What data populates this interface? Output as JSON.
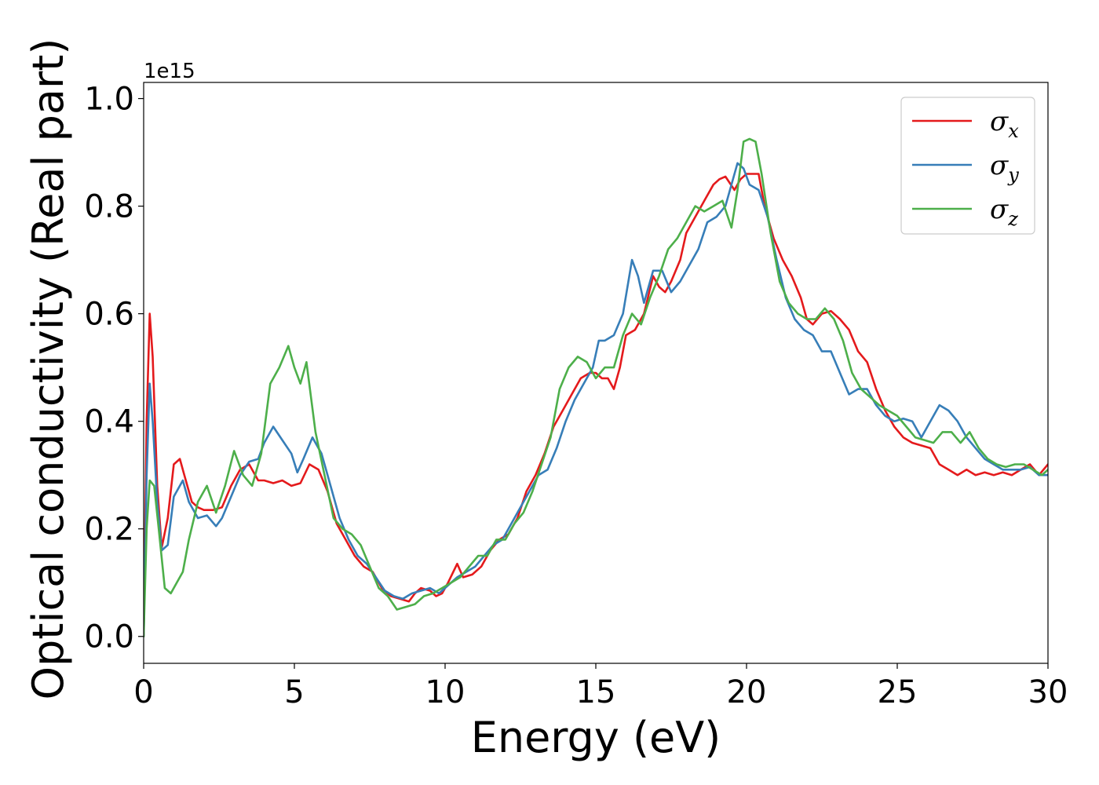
{
  "chart_data": {
    "type": "line",
    "title": "",
    "xlabel": "Energy (eV)",
    "ylabel": "Optical conductivity (Real part)",
    "y_multiplier_label": "1e15",
    "xlim": [
      0,
      30
    ],
    "ylim": [
      -0.05,
      1.03
    ],
    "x_ticks": [
      0,
      5,
      10,
      15,
      20,
      25,
      30
    ],
    "x_tick_labels": [
      "0",
      "5",
      "10",
      "15",
      "20",
      "25",
      "30"
    ],
    "y_ticks": [
      0.0,
      0.2,
      0.4,
      0.6,
      0.8,
      1.0
    ],
    "y_tick_labels": [
      "0.0",
      "0.2",
      "0.4",
      "0.6",
      "0.8",
      "1.0"
    ],
    "grid": false,
    "legend_position": "top-right",
    "series": [
      {
        "name": "σx",
        "symbol": "σ",
        "subscript": "x",
        "color": "#e41a1c",
        "x": [
          0,
          0.1,
          0.2,
          0.3,
          0.45,
          0.6,
          0.8,
          1.0,
          1.2,
          1.35,
          1.6,
          1.8,
          2.0,
          2.3,
          2.6,
          2.9,
          3.2,
          3.5,
          3.8,
          4.0,
          4.3,
          4.6,
          4.9,
          5.2,
          5.5,
          5.8,
          6.1,
          6.4,
          6.7,
          7.0,
          7.3,
          7.6,
          7.9,
          8.2,
          8.5,
          8.8,
          9.0,
          9.2,
          9.5,
          9.7,
          9.9,
          10.1,
          10.4,
          10.6,
          10.9,
          11.2,
          11.5,
          11.8,
          12.1,
          12.4,
          12.7,
          13.0,
          13.3,
          13.6,
          13.9,
          14.2,
          14.5,
          14.8,
          15.0,
          15.2,
          15.4,
          15.6,
          15.8,
          16.0,
          16.3,
          16.6,
          16.9,
          17.1,
          17.3,
          17.5,
          17.8,
          18.0,
          18.3,
          18.6,
          18.9,
          19.1,
          19.3,
          19.6,
          19.8,
          20.0,
          20.2,
          20.4,
          20.6,
          20.9,
          21.2,
          21.5,
          21.8,
          22.0,
          22.2,
          22.5,
          22.8,
          23.1,
          23.4,
          23.7,
          24.0,
          24.3,
          24.6,
          24.9,
          25.2,
          25.5,
          25.8,
          26.1,
          26.4,
          26.7,
          27.0,
          27.3,
          27.6,
          27.9,
          28.2,
          28.5,
          28.8,
          29.1,
          29.4,
          29.7,
          30.0
        ],
        "values": [
          0.0,
          0.4,
          0.6,
          0.52,
          0.28,
          0.165,
          0.22,
          0.32,
          0.33,
          0.3,
          0.25,
          0.24,
          0.235,
          0.235,
          0.24,
          0.28,
          0.31,
          0.32,
          0.29,
          0.29,
          0.285,
          0.29,
          0.28,
          0.285,
          0.32,
          0.31,
          0.27,
          0.21,
          0.18,
          0.15,
          0.13,
          0.12,
          0.09,
          0.075,
          0.07,
          0.065,
          0.08,
          0.09,
          0.085,
          0.075,
          0.08,
          0.1,
          0.135,
          0.11,
          0.115,
          0.13,
          0.16,
          0.18,
          0.19,
          0.22,
          0.27,
          0.3,
          0.34,
          0.39,
          0.42,
          0.45,
          0.48,
          0.49,
          0.49,
          0.48,
          0.48,
          0.46,
          0.5,
          0.56,
          0.57,
          0.6,
          0.67,
          0.65,
          0.64,
          0.66,
          0.7,
          0.75,
          0.78,
          0.81,
          0.84,
          0.85,
          0.855,
          0.83,
          0.85,
          0.86,
          0.86,
          0.86,
          0.8,
          0.74,
          0.7,
          0.67,
          0.63,
          0.59,
          0.58,
          0.6,
          0.605,
          0.59,
          0.57,
          0.53,
          0.51,
          0.46,
          0.42,
          0.39,
          0.37,
          0.36,
          0.355,
          0.35,
          0.32,
          0.31,
          0.3,
          0.31,
          0.3,
          0.305,
          0.3,
          0.305,
          0.3,
          0.31,
          0.32,
          0.3,
          0.32
        ]
      },
      {
        "name": "σy",
        "symbol": "σ",
        "subscript": "y",
        "color": "#377eb8",
        "x": [
          0,
          0.1,
          0.2,
          0.3,
          0.45,
          0.6,
          0.8,
          1.0,
          1.3,
          1.5,
          1.8,
          2.1,
          2.4,
          2.6,
          2.9,
          3.2,
          3.5,
          3.8,
          4.0,
          4.3,
          4.6,
          4.9,
          5.1,
          5.3,
          5.6,
          5.9,
          6.2,
          6.5,
          6.8,
          7.1,
          7.4,
          7.7,
          8.0,
          8.3,
          8.6,
          8.9,
          9.2,
          9.5,
          9.8,
          10.1,
          10.4,
          10.7,
          11.0,
          11.3,
          11.6,
          11.9,
          12.2,
          12.5,
          12.8,
          13.1,
          13.4,
          13.7,
          14.0,
          14.3,
          14.6,
          14.9,
          15.1,
          15.3,
          15.6,
          15.9,
          16.2,
          16.4,
          16.6,
          16.9,
          17.2,
          17.5,
          17.8,
          18.1,
          18.4,
          18.7,
          19.0,
          19.3,
          19.5,
          19.7,
          19.9,
          20.1,
          20.4,
          20.7,
          21.0,
          21.3,
          21.6,
          21.9,
          22.2,
          22.5,
          22.8,
          23.1,
          23.4,
          23.7,
          24.0,
          24.3,
          24.6,
          24.9,
          25.2,
          25.5,
          25.8,
          26.1,
          26.4,
          26.7,
          27.0,
          27.3,
          27.6,
          27.9,
          28.2,
          28.5,
          28.8,
          29.1,
          29.4,
          29.7,
          30.0
        ],
        "values": [
          0.0,
          0.3,
          0.47,
          0.4,
          0.25,
          0.16,
          0.17,
          0.26,
          0.29,
          0.25,
          0.22,
          0.225,
          0.205,
          0.22,
          0.26,
          0.3,
          0.325,
          0.33,
          0.36,
          0.39,
          0.365,
          0.34,
          0.305,
          0.33,
          0.37,
          0.34,
          0.28,
          0.22,
          0.18,
          0.15,
          0.135,
          0.11,
          0.085,
          0.075,
          0.07,
          0.08,
          0.085,
          0.09,
          0.08,
          0.095,
          0.11,
          0.12,
          0.13,
          0.15,
          0.17,
          0.18,
          0.21,
          0.24,
          0.27,
          0.3,
          0.31,
          0.35,
          0.4,
          0.44,
          0.47,
          0.5,
          0.55,
          0.55,
          0.56,
          0.6,
          0.7,
          0.67,
          0.62,
          0.68,
          0.68,
          0.64,
          0.66,
          0.69,
          0.72,
          0.77,
          0.78,
          0.8,
          0.84,
          0.88,
          0.87,
          0.84,
          0.83,
          0.78,
          0.7,
          0.63,
          0.59,
          0.57,
          0.56,
          0.53,
          0.53,
          0.49,
          0.45,
          0.46,
          0.46,
          0.43,
          0.41,
          0.4,
          0.405,
          0.4,
          0.37,
          0.4,
          0.43,
          0.42,
          0.4,
          0.37,
          0.35,
          0.33,
          0.32,
          0.31,
          0.31,
          0.31,
          0.315,
          0.3,
          0.3
        ]
      },
      {
        "name": "σz",
        "symbol": "σ",
        "subscript": "z",
        "color": "#4daf4a",
        "x": [
          0,
          0.1,
          0.2,
          0.35,
          0.5,
          0.7,
          0.9,
          1.1,
          1.3,
          1.5,
          1.8,
          2.1,
          2.4,
          2.7,
          3.0,
          3.3,
          3.6,
          3.9,
          4.2,
          4.5,
          4.8,
          5.0,
          5.2,
          5.4,
          5.7,
          6.0,
          6.3,
          6.6,
          6.9,
          7.2,
          7.5,
          7.8,
          8.1,
          8.4,
          8.7,
          9.0,
          9.3,
          9.6,
          9.9,
          10.2,
          10.5,
          10.8,
          11.1,
          11.4,
          11.7,
          12.0,
          12.3,
          12.6,
          12.9,
          13.2,
          13.5,
          13.8,
          14.1,
          14.4,
          14.7,
          15.0,
          15.3,
          15.6,
          15.9,
          16.2,
          16.5,
          16.8,
          17.1,
          17.4,
          17.7,
          18.0,
          18.3,
          18.6,
          18.9,
          19.2,
          19.5,
          19.7,
          19.9,
          20.1,
          20.3,
          20.5,
          20.8,
          21.1,
          21.4,
          21.7,
          22.0,
          22.3,
          22.6,
          22.9,
          23.2,
          23.5,
          23.8,
          24.1,
          24.4,
          24.7,
          25.0,
          25.3,
          25.6,
          25.9,
          26.2,
          26.5,
          26.8,
          27.1,
          27.4,
          27.7,
          28.0,
          28.3,
          28.6,
          28.9,
          29.2,
          29.5,
          29.8,
          30.0
        ],
        "values": [
          0.0,
          0.2,
          0.29,
          0.28,
          0.2,
          0.09,
          0.08,
          0.1,
          0.12,
          0.18,
          0.25,
          0.28,
          0.23,
          0.28,
          0.345,
          0.3,
          0.28,
          0.34,
          0.47,
          0.5,
          0.54,
          0.5,
          0.47,
          0.51,
          0.38,
          0.3,
          0.22,
          0.2,
          0.19,
          0.17,
          0.13,
          0.09,
          0.075,
          0.05,
          0.055,
          0.06,
          0.075,
          0.08,
          0.09,
          0.1,
          0.11,
          0.13,
          0.15,
          0.15,
          0.18,
          0.18,
          0.21,
          0.23,
          0.27,
          0.32,
          0.37,
          0.46,
          0.5,
          0.52,
          0.51,
          0.48,
          0.5,
          0.5,
          0.56,
          0.6,
          0.58,
          0.63,
          0.67,
          0.72,
          0.74,
          0.77,
          0.8,
          0.79,
          0.8,
          0.81,
          0.76,
          0.83,
          0.92,
          0.925,
          0.92,
          0.86,
          0.75,
          0.66,
          0.62,
          0.6,
          0.59,
          0.59,
          0.61,
          0.59,
          0.55,
          0.49,
          0.46,
          0.445,
          0.43,
          0.42,
          0.41,
          0.39,
          0.37,
          0.365,
          0.36,
          0.38,
          0.38,
          0.36,
          0.38,
          0.35,
          0.33,
          0.32,
          0.315,
          0.32,
          0.32,
          0.31,
          0.3,
          0.31
        ]
      }
    ]
  }
}
